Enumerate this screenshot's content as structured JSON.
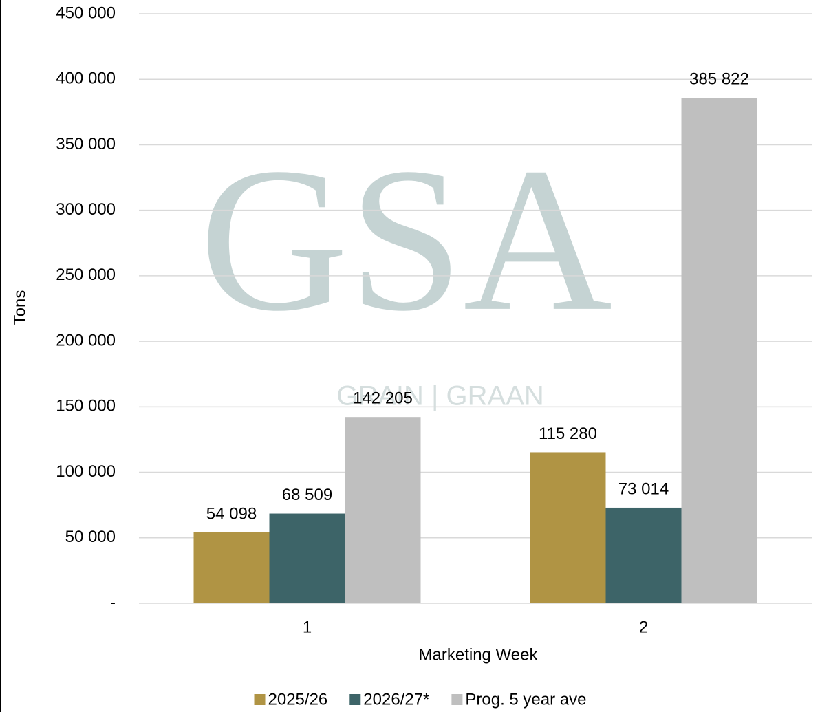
{
  "chart_data": {
    "type": "bar",
    "categories": [
      "1",
      "2"
    ],
    "series": [
      {
        "name": "2025/26",
        "color": "#b09444",
        "values": [
          54098,
          115280
        ],
        "value_labels": [
          "54 098",
          "115 280"
        ]
      },
      {
        "name": "2026/27*",
        "color": "#3d6468",
        "values": [
          68509,
          73014
        ],
        "value_labels": [
          "68 509",
          "73 014"
        ]
      },
      {
        "name": "Prog. 5 year ave",
        "color": "#bfbfbf",
        "values": [
          142205,
          385822
        ],
        "value_labels": [
          "142 205",
          "385 822"
        ]
      }
    ],
    "ylim": [
      0,
      450000
    ],
    "yticks": [
      {
        "value": 0,
        "label": "-"
      },
      {
        "value": 50000,
        "label": "50 000"
      },
      {
        "value": 100000,
        "label": "100 000"
      },
      {
        "value": 150000,
        "label": "150 000"
      },
      {
        "value": 200000,
        "label": "200 000"
      },
      {
        "value": 250000,
        "label": "250 000"
      },
      {
        "value": 300000,
        "label": "300 000"
      },
      {
        "value": 350000,
        "label": "350 000"
      },
      {
        "value": 400000,
        "label": "400 000"
      },
      {
        "value": 450000,
        "label": "450 000"
      }
    ],
    "ylabel": "Tons",
    "xlabel": "Marketing Week",
    "grid": true,
    "legend": "bottom",
    "watermark": [
      "GSA",
      "GRAIN | GRAAN"
    ]
  }
}
